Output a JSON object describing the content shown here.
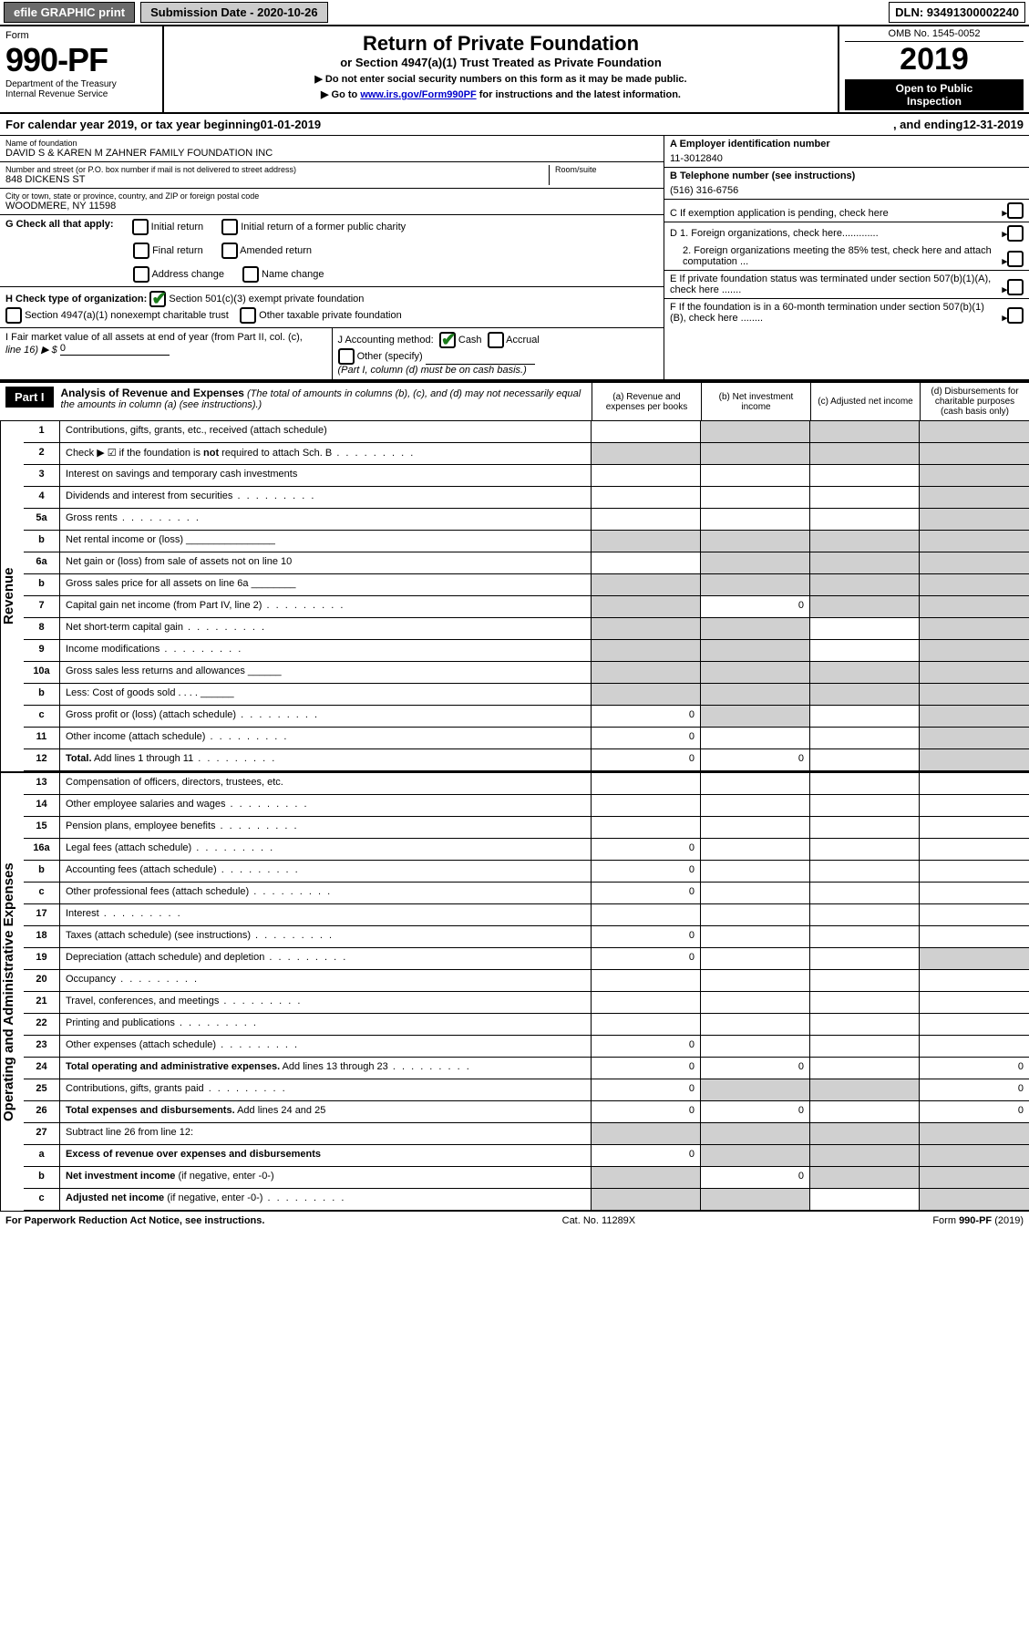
{
  "colors": {
    "topbar_btn_bg": "#6a6a6a",
    "topbar_sub_bg": "#cccccc",
    "black": "#000000",
    "white": "#ffffff",
    "link": "#0000cc",
    "check_green": "#1a7a1a",
    "shaded_cell": "#d0d0d0"
  },
  "topbar": {
    "efile": "efile GRAPHIC print",
    "submission": "Submission Date - 2020-10-26",
    "dln": "DLN: 93491300002240"
  },
  "header": {
    "form_label": "Form",
    "form_no": "990-PF",
    "dept1": "Department of the Treasury",
    "dept2": "Internal Revenue Service",
    "title": "Return of Private Foundation",
    "subtitle": "or Section 4947(a)(1) Trust Treated as Private Foundation",
    "note1": "▶ Do not enter social security numbers on this form as it may be made public.",
    "note2_pre": "▶ Go to ",
    "note2_link": "www.irs.gov/Form990PF",
    "note2_post": " for instructions and the latest information.",
    "omb": "OMB No. 1545-0052",
    "year": "2019",
    "inspect1": "Open to Public",
    "inspect2": "Inspection"
  },
  "cal": {
    "pre": "For calendar year 2019, or tax year beginning ",
    "begin": "01-01-2019",
    "mid": ", and ending ",
    "end": "12-31-2019"
  },
  "entity": {
    "name_label": "Name of foundation",
    "name": "DAVID S & KAREN M ZAHNER FAMILY FOUNDATION INC",
    "addr_label": "Number and street (or P.O. box number if mail is not delivered to street address)",
    "addr": "848 DICKENS ST",
    "room_label": "Room/suite",
    "city_label": "City or town, state or province, country, and ZIP or foreign postal code",
    "city": "WOODMERE, NY  11598",
    "A_label": "A Employer identification number",
    "A_val": "11-3012840",
    "B_label": "B Telephone number (see instructions)",
    "B_val": "(516) 316-6756",
    "C_label": "C If exemption application is pending, check here",
    "D1_label": "D 1. Foreign organizations, check here.............",
    "D2_label": "2. Foreign organizations meeting the 85% test, check here and attach computation ...",
    "E_label": "E If private foundation status was terminated under section 507(b)(1)(A), check here .......",
    "F_label": "F If the foundation is in a 60-month termination under section 507(b)(1)(B), check here ........"
  },
  "G": {
    "label": "G Check all that apply:",
    "opts": [
      "Initial return",
      "Final return",
      "Address change",
      "Initial return of a former public charity",
      "Amended return",
      "Name change"
    ]
  },
  "H": {
    "label": "H Check type of organization:",
    "opt1": "Section 501(c)(3) exempt private foundation",
    "opt2": "Section 4947(a)(1) nonexempt charitable trust",
    "opt3": "Other taxable private foundation"
  },
  "I": {
    "label1": "I Fair market value of all assets at end of year (from Part II, col. (c),",
    "label2": "line 16) ▶ $",
    "val": "0"
  },
  "J": {
    "label": "J Accounting method:",
    "cash": "Cash",
    "accrual": "Accrual",
    "other": "Other (specify)",
    "note": "(Part I, column (d) must be on cash basis.)"
  },
  "part1": {
    "label": "Part I",
    "title": "Analysis of Revenue and Expenses",
    "note": " (The total of amounts in columns (b), (c), and (d) may not necessarily equal the amounts in column (a) (see instructions).)",
    "col_a": "(a)   Revenue and expenses per books",
    "col_b": "(b)  Net investment income",
    "col_c": "(c)  Adjusted net income",
    "col_d": "(d)  Disbursements for charitable purposes (cash basis only)"
  },
  "side_labels": {
    "revenue": "Revenue",
    "expenses": "Operating and Administrative Expenses"
  },
  "rows": [
    {
      "n": "1",
      "d": "Contributions, gifts, grants, etc., received (attach schedule)",
      "a": "",
      "b": "gray",
      "c": "gray",
      "dd": "gray"
    },
    {
      "n": "2",
      "d": "Check ▶ ☑ if the foundation is <b>not</b> required to attach Sch. B",
      "a": "gray",
      "b": "gray",
      "c": "gray",
      "dd": "gray",
      "dots": true
    },
    {
      "n": "3",
      "d": "Interest on savings and temporary cash investments",
      "a": "",
      "b": "",
      "c": "",
      "dd": "gray"
    },
    {
      "n": "4",
      "d": "Dividends and interest from securities",
      "a": "",
      "b": "",
      "c": "",
      "dd": "gray",
      "dots": true
    },
    {
      "n": "5a",
      "d": "Gross rents",
      "a": "",
      "b": "",
      "c": "",
      "dd": "gray",
      "dots": true
    },
    {
      "n": "b",
      "d": "Net rental income or (loss)  ________________",
      "a": "gray",
      "b": "gray",
      "c": "gray",
      "dd": "gray"
    },
    {
      "n": "6a",
      "d": "Net gain or (loss) from sale of assets not on line 10",
      "a": "",
      "b": "gray",
      "c": "gray",
      "dd": "gray"
    },
    {
      "n": "b",
      "d": "Gross sales price for all assets on line 6a  ________",
      "a": "gray",
      "b": "gray",
      "c": "gray",
      "dd": "gray"
    },
    {
      "n": "7",
      "d": "Capital gain net income (from Part IV, line 2)",
      "a": "gray",
      "b": "0",
      "c": "gray",
      "dd": "gray",
      "dots": true
    },
    {
      "n": "8",
      "d": "Net short-term capital gain",
      "a": "gray",
      "b": "gray",
      "c": "",
      "dd": "gray",
      "dots": true
    },
    {
      "n": "9",
      "d": "Income modifications",
      "a": "gray",
      "b": "gray",
      "c": "",
      "dd": "gray",
      "dots": true
    },
    {
      "n": "10a",
      "d": "Gross sales less returns and allowances  ______",
      "a": "gray",
      "b": "gray",
      "c": "gray",
      "dd": "gray"
    },
    {
      "n": "b",
      "d": "Less: Cost of goods sold     .  .  .  .  ______",
      "a": "gray",
      "b": "gray",
      "c": "gray",
      "dd": "gray"
    },
    {
      "n": "c",
      "d": "Gross profit or (loss) (attach schedule)",
      "a": "0",
      "b": "gray",
      "c": "",
      "dd": "gray",
      "dots": true
    },
    {
      "n": "11",
      "d": "Other income (attach schedule)",
      "a": "0",
      "b": "",
      "c": "",
      "dd": "gray",
      "dots": true
    },
    {
      "n": "12",
      "d": "<b>Total.</b> Add lines 1 through 11",
      "a": "0",
      "b": "0",
      "c": "",
      "dd": "gray",
      "dots": true
    }
  ],
  "exp_rows": [
    {
      "n": "13",
      "d": "Compensation of officers, directors, trustees, etc.",
      "a": "",
      "b": "",
      "c": "",
      "dd": ""
    },
    {
      "n": "14",
      "d": "Other employee salaries and wages",
      "a": "",
      "b": "",
      "c": "",
      "dd": "",
      "dots": true
    },
    {
      "n": "15",
      "d": "Pension plans, employee benefits",
      "a": "",
      "b": "",
      "c": "",
      "dd": "",
      "dots": true
    },
    {
      "n": "16a",
      "d": "Legal fees (attach schedule)",
      "a": "0",
      "b": "",
      "c": "",
      "dd": "",
      "dots": true
    },
    {
      "n": "b",
      "d": "Accounting fees (attach schedule)",
      "a": "0",
      "b": "",
      "c": "",
      "dd": "",
      "dots": true
    },
    {
      "n": "c",
      "d": "Other professional fees (attach schedule)",
      "a": "0",
      "b": "",
      "c": "",
      "dd": "",
      "dots": true
    },
    {
      "n": "17",
      "d": "Interest",
      "a": "",
      "b": "",
      "c": "",
      "dd": "",
      "dots": true
    },
    {
      "n": "18",
      "d": "Taxes (attach schedule) (see instructions)",
      "a": "0",
      "b": "",
      "c": "",
      "dd": "",
      "dots": true
    },
    {
      "n": "19",
      "d": "Depreciation (attach schedule) and depletion",
      "a": "0",
      "b": "",
      "c": "",
      "dd": "gray",
      "dots": true
    },
    {
      "n": "20",
      "d": "Occupancy",
      "a": "",
      "b": "",
      "c": "",
      "dd": "",
      "dots": true
    },
    {
      "n": "21",
      "d": "Travel, conferences, and meetings",
      "a": "",
      "b": "",
      "c": "",
      "dd": "",
      "dots": true
    },
    {
      "n": "22",
      "d": "Printing and publications",
      "a": "",
      "b": "",
      "c": "",
      "dd": "",
      "dots": true
    },
    {
      "n": "23",
      "d": "Other expenses (attach schedule)",
      "a": "0",
      "b": "",
      "c": "",
      "dd": "",
      "dots": true
    },
    {
      "n": "24",
      "d": "<b>Total operating and administrative expenses.</b> Add lines 13 through 23",
      "a": "0",
      "b": "0",
      "c": "",
      "dd": "0",
      "dots": true
    },
    {
      "n": "25",
      "d": "Contributions, gifts, grants paid",
      "a": "0",
      "b": "gray",
      "c": "gray",
      "dd": "0",
      "dots": true
    },
    {
      "n": "26",
      "d": "<b>Total expenses and disbursements.</b> Add lines 24 and 25",
      "a": "0",
      "b": "0",
      "c": "",
      "dd": "0"
    },
    {
      "n": "27",
      "d": "Subtract line 26 from line 12:",
      "a": "gray",
      "b": "gray",
      "c": "gray",
      "dd": "gray"
    },
    {
      "n": "a",
      "d": "<b>Excess of revenue over expenses and disbursements</b>",
      "a": "0",
      "b": "gray",
      "c": "gray",
      "dd": "gray"
    },
    {
      "n": "b",
      "d": "<b>Net investment income</b> (if negative, enter -0-)",
      "a": "gray",
      "b": "0",
      "c": "gray",
      "dd": "gray"
    },
    {
      "n": "c",
      "d": "<b>Adjusted net income</b> (if negative, enter -0-)",
      "a": "gray",
      "b": "gray",
      "c": "",
      "dd": "gray",
      "dots": true
    }
  ],
  "footer": {
    "left": "For Paperwork Reduction Act Notice, see instructions.",
    "mid": "Cat. No. 11289X",
    "right": "Form 990-PF (2019)"
  }
}
